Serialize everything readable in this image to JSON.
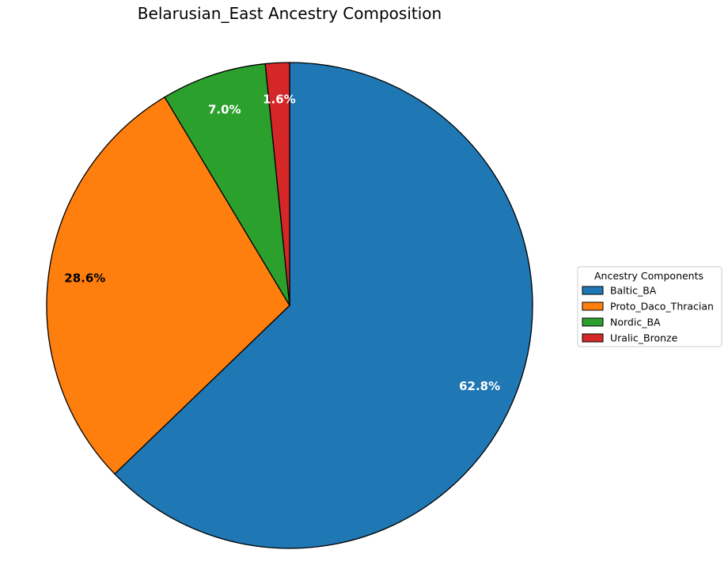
{
  "chart_data": {
    "type": "pie",
    "title": "Belarusian_East Ancestry Composition",
    "legend_title": "Ancestry Components",
    "legend_position": "right",
    "start_angle_deg": 90,
    "direction": "clockwise",
    "slices": [
      {
        "label": "Baltic_BA",
        "value": 62.8,
        "pct_label": "62.8%",
        "color": "#1f77b4",
        "label_color": "#ffffff"
      },
      {
        "label": "Proto_Daco_Thracian",
        "value": 28.6,
        "pct_label": "28.6%",
        "color": "#ff7f0e",
        "label_color": "#000000"
      },
      {
        "label": "Nordic_BA",
        "value": 7.0,
        "pct_label": "7.0%",
        "color": "#2ca02c",
        "label_color": "#ffffff"
      },
      {
        "label": "Uralic_Bronze",
        "value": 1.6,
        "pct_label": "1.6%",
        "color": "#d62728",
        "label_color": "#ffffff"
      }
    ]
  }
}
